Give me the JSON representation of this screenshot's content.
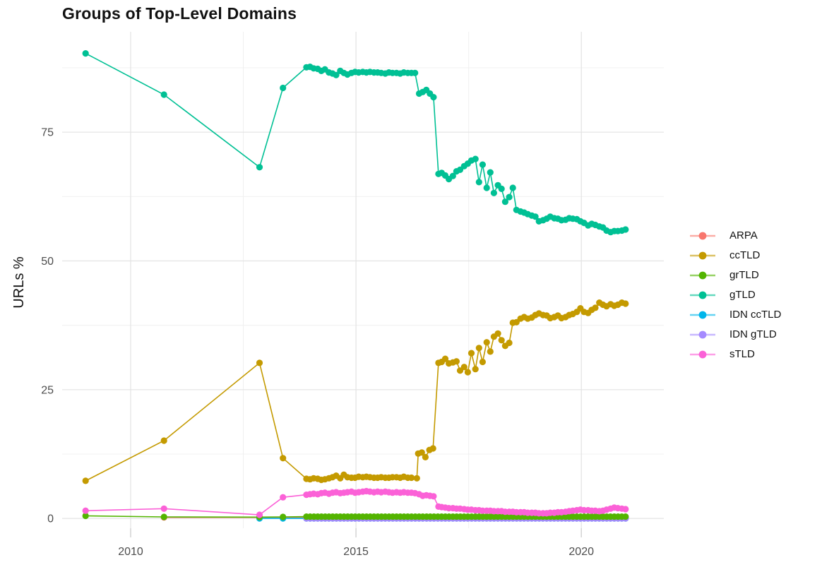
{
  "title": "Groups of Top-Level Domains",
  "y_axis": {
    "label": "URLs %",
    "ticks": [
      "0",
      "25",
      "50",
      "75"
    ]
  },
  "x_axis": {
    "ticks": [
      "2010",
      "2015",
      "2020"
    ]
  },
  "legend": {
    "items": [
      {
        "label": "ARPA",
        "color": "#F8766D"
      },
      {
        "label": "ccTLD",
        "color": "#C49A00"
      },
      {
        "label": "grTLD",
        "color": "#53B400"
      },
      {
        "label": "gTLD",
        "color": "#00C094"
      },
      {
        "label": "IDN ccTLD",
        "color": "#00B6EB"
      },
      {
        "label": "IDN gTLD",
        "color": "#A58AFF"
      },
      {
        "label": "sTLD",
        "color": "#FB61D7"
      }
    ]
  },
  "chart_data": {
    "type": "line",
    "title": "Groups of Top-Level Domains",
    "xlabel": "",
    "ylabel": "URLs %",
    "x_ticks": [
      2010,
      2015,
      2020
    ],
    "y_ticks": [
      0,
      25,
      50,
      75
    ],
    "xlim": [
      2008.48,
      2021.83
    ],
    "ylim": [
      -1.9,
      94.5
    ],
    "grid": true,
    "legend_position": "right",
    "draw_order": [
      "ARPA",
      "IDN ccTLD",
      "IDN gTLD",
      "grTLD",
      "ccTLD",
      "gTLD",
      "sTLD"
    ],
    "series": [
      {
        "name": "ARPA",
        "color": "#F8766D",
        "points": [
          [
            2010.74,
            0.2
          ],
          [
            2012.86,
            0.2
          ],
          [
            2013.38,
            0.15
          ]
        ],
        "flat": {
          "x_start": 2013.9,
          "x_end": 2020.99,
          "step": 0.0833,
          "value": 0.15
        }
      },
      {
        "name": "IDN ccTLD",
        "color": "#00B6EB",
        "points": [
          [
            2012.86,
            0.0
          ],
          [
            2013.38,
            0.0
          ]
        ],
        "flat": {
          "x_start": 2013.9,
          "x_end": 2020.99,
          "step": 0.0833,
          "value": 0.0
        }
      },
      {
        "name": "IDN gTLD",
        "color": "#A58AFF",
        "points": [],
        "flat": {
          "x_start": 2013.9,
          "x_end": 2020.99,
          "step": 0.0833,
          "value": 0.0
        }
      },
      {
        "name": "grTLD",
        "color": "#53B400",
        "points": [
          [
            2009.0,
            0.5
          ],
          [
            2010.74,
            0.3
          ],
          [
            2012.86,
            0.25
          ],
          [
            2013.38,
            0.3
          ]
        ],
        "flat": {
          "x_start": 2013.9,
          "x_end": 2020.99,
          "step": 0.0833,
          "value": 0.35
        }
      },
      {
        "name": "ccTLD",
        "color": "#C49A00",
        "points": [
          [
            2009.0,
            7.3
          ],
          [
            2010.74,
            15.1
          ],
          [
            2012.86,
            30.2
          ],
          [
            2013.38,
            11.7
          ],
          [
            2013.9,
            7.7
          ],
          [
            2013.98,
            7.6
          ],
          [
            2014.06,
            7.8
          ],
          [
            2014.15,
            7.7
          ],
          [
            2014.23,
            7.5
          ],
          [
            2014.31,
            7.6
          ],
          [
            2014.4,
            7.8
          ],
          [
            2014.48,
            8.0
          ],
          [
            2014.56,
            8.3
          ],
          [
            2014.65,
            7.8
          ],
          [
            2014.73,
            8.5
          ],
          [
            2014.81,
            8.0
          ],
          [
            2014.9,
            7.9
          ],
          [
            2014.98,
            7.9
          ],
          [
            2015.06,
            8.1
          ],
          [
            2015.15,
            8.0
          ],
          [
            2015.23,
            8.1
          ],
          [
            2015.31,
            8.0
          ],
          [
            2015.4,
            7.9
          ],
          [
            2015.48,
            7.9
          ],
          [
            2015.56,
            8.0
          ],
          [
            2015.65,
            7.9
          ],
          [
            2015.73,
            7.9
          ],
          [
            2015.81,
            8.0
          ],
          [
            2015.9,
            8.0
          ],
          [
            2015.98,
            7.9
          ],
          [
            2016.06,
            8.1
          ],
          [
            2016.15,
            7.9
          ],
          [
            2016.23,
            7.9
          ],
          [
            2016.35,
            7.8
          ],
          [
            2016.38,
            12.6
          ],
          [
            2016.46,
            12.8
          ],
          [
            2016.54,
            11.9
          ],
          [
            2016.63,
            13.3
          ],
          [
            2016.71,
            13.6
          ],
          [
            2016.83,
            30.2
          ],
          [
            2016.9,
            30.4
          ],
          [
            2016.98,
            31.0
          ],
          [
            2017.06,
            30.1
          ],
          [
            2017.15,
            30.3
          ],
          [
            2017.23,
            30.5
          ],
          [
            2017.31,
            28.7
          ],
          [
            2017.4,
            29.4
          ],
          [
            2017.48,
            28.4
          ],
          [
            2017.56,
            32.1
          ],
          [
            2017.65,
            29.0
          ],
          [
            2017.73,
            33.1
          ],
          [
            2017.81,
            30.4
          ],
          [
            2017.9,
            34.2
          ],
          [
            2017.98,
            32.4
          ],
          [
            2018.06,
            35.3
          ],
          [
            2018.15,
            35.9
          ],
          [
            2018.23,
            34.6
          ],
          [
            2018.31,
            33.5
          ],
          [
            2018.4,
            34.1
          ],
          [
            2018.48,
            38.0
          ],
          [
            2018.56,
            38.1
          ],
          [
            2018.65,
            38.8
          ],
          [
            2018.73,
            39.1
          ],
          [
            2018.81,
            38.8
          ],
          [
            2018.9,
            39.0
          ],
          [
            2018.98,
            39.5
          ],
          [
            2019.06,
            39.8
          ],
          [
            2019.15,
            39.5
          ],
          [
            2019.23,
            39.4
          ],
          [
            2019.31,
            38.9
          ],
          [
            2019.4,
            39.1
          ],
          [
            2019.48,
            39.4
          ],
          [
            2019.56,
            38.9
          ],
          [
            2019.65,
            39.1
          ],
          [
            2019.73,
            39.5
          ],
          [
            2019.81,
            39.7
          ],
          [
            2019.9,
            40.1
          ],
          [
            2019.98,
            40.8
          ],
          [
            2020.06,
            40.1
          ],
          [
            2020.15,
            39.9
          ],
          [
            2020.23,
            40.5
          ],
          [
            2020.31,
            40.9
          ],
          [
            2020.4,
            41.9
          ],
          [
            2020.48,
            41.5
          ],
          [
            2020.56,
            41.2
          ],
          [
            2020.65,
            41.6
          ],
          [
            2020.73,
            41.3
          ],
          [
            2020.81,
            41.5
          ],
          [
            2020.9,
            41.9
          ],
          [
            2020.98,
            41.7
          ]
        ]
      },
      {
        "name": "gTLD",
        "color": "#00C094",
        "points": [
          [
            2009.0,
            90.3
          ],
          [
            2010.74,
            82.3
          ],
          [
            2012.86,
            68.2
          ],
          [
            2013.38,
            83.6
          ],
          [
            2013.9,
            87.6
          ],
          [
            2013.98,
            87.7
          ],
          [
            2014.06,
            87.4
          ],
          [
            2014.15,
            87.3
          ],
          [
            2014.23,
            86.9
          ],
          [
            2014.31,
            87.2
          ],
          [
            2014.4,
            86.6
          ],
          [
            2014.48,
            86.4
          ],
          [
            2014.56,
            86.1
          ],
          [
            2014.65,
            86.9
          ],
          [
            2014.73,
            86.5
          ],
          [
            2014.81,
            86.2
          ],
          [
            2014.9,
            86.5
          ],
          [
            2014.98,
            86.7
          ],
          [
            2015.06,
            86.6
          ],
          [
            2015.15,
            86.7
          ],
          [
            2015.23,
            86.6
          ],
          [
            2015.31,
            86.7
          ],
          [
            2015.4,
            86.6
          ],
          [
            2015.48,
            86.6
          ],
          [
            2015.56,
            86.5
          ],
          [
            2015.65,
            86.4
          ],
          [
            2015.73,
            86.6
          ],
          [
            2015.81,
            86.5
          ],
          [
            2015.9,
            86.5
          ],
          [
            2015.98,
            86.4
          ],
          [
            2016.06,
            86.6
          ],
          [
            2016.15,
            86.5
          ],
          [
            2016.23,
            86.5
          ],
          [
            2016.31,
            86.5
          ],
          [
            2016.4,
            82.5
          ],
          [
            2016.48,
            82.8
          ],
          [
            2016.56,
            83.2
          ],
          [
            2016.64,
            82.5
          ],
          [
            2016.72,
            81.8
          ],
          [
            2016.83,
            66.9
          ],
          [
            2016.9,
            67.1
          ],
          [
            2016.98,
            66.6
          ],
          [
            2017.06,
            65.9
          ],
          [
            2017.15,
            66.5
          ],
          [
            2017.23,
            67.4
          ],
          [
            2017.31,
            67.7
          ],
          [
            2017.4,
            68.4
          ],
          [
            2017.48,
            68.9
          ],
          [
            2017.56,
            69.5
          ],
          [
            2017.65,
            69.8
          ],
          [
            2017.73,
            65.3
          ],
          [
            2017.81,
            68.7
          ],
          [
            2017.9,
            64.2
          ],
          [
            2017.98,
            67.2
          ],
          [
            2018.06,
            63.2
          ],
          [
            2018.15,
            64.7
          ],
          [
            2018.23,
            64.0
          ],
          [
            2018.31,
            61.5
          ],
          [
            2018.4,
            62.4
          ],
          [
            2018.48,
            64.2
          ],
          [
            2018.56,
            59.9
          ],
          [
            2018.65,
            59.6
          ],
          [
            2018.73,
            59.4
          ],
          [
            2018.81,
            59.1
          ],
          [
            2018.9,
            58.8
          ],
          [
            2018.98,
            58.6
          ],
          [
            2019.06,
            57.7
          ],
          [
            2019.15,
            57.9
          ],
          [
            2019.23,
            58.2
          ],
          [
            2019.31,
            58.6
          ],
          [
            2019.4,
            58.3
          ],
          [
            2019.48,
            58.2
          ],
          [
            2019.56,
            57.9
          ],
          [
            2019.65,
            58.0
          ],
          [
            2019.73,
            58.3
          ],
          [
            2019.81,
            58.2
          ],
          [
            2019.9,
            58.1
          ],
          [
            2019.98,
            57.7
          ],
          [
            2020.06,
            57.4
          ],
          [
            2020.15,
            56.9
          ],
          [
            2020.23,
            57.2
          ],
          [
            2020.31,
            57.0
          ],
          [
            2020.4,
            56.7
          ],
          [
            2020.48,
            56.5
          ],
          [
            2020.56,
            55.9
          ],
          [
            2020.65,
            55.6
          ],
          [
            2020.73,
            55.8
          ],
          [
            2020.81,
            55.8
          ],
          [
            2020.9,
            55.9
          ],
          [
            2020.98,
            56.1
          ]
        ]
      },
      {
        "name": "sTLD",
        "color": "#FB61D7",
        "points": [
          [
            2009.0,
            1.5
          ],
          [
            2010.74,
            1.9
          ],
          [
            2012.86,
            0.7
          ],
          [
            2013.38,
            4.1
          ],
          [
            2013.9,
            4.6
          ],
          [
            2013.98,
            4.7
          ],
          [
            2014.06,
            4.8
          ],
          [
            2014.15,
            4.7
          ],
          [
            2014.23,
            4.9
          ],
          [
            2014.31,
            5.0
          ],
          [
            2014.4,
            4.8
          ],
          [
            2014.48,
            5.0
          ],
          [
            2014.56,
            5.1
          ],
          [
            2014.65,
            4.9
          ],
          [
            2014.73,
            5.0
          ],
          [
            2014.81,
            5.1
          ],
          [
            2014.9,
            5.2
          ],
          [
            2014.98,
            5.0
          ],
          [
            2015.06,
            5.1
          ],
          [
            2015.15,
            5.2
          ],
          [
            2015.23,
            5.3
          ],
          [
            2015.31,
            5.2
          ],
          [
            2015.4,
            5.1
          ],
          [
            2015.48,
            5.2
          ],
          [
            2015.56,
            5.1
          ],
          [
            2015.65,
            5.2
          ],
          [
            2015.73,
            5.1
          ],
          [
            2015.81,
            5.0
          ],
          [
            2015.9,
            5.1
          ],
          [
            2015.98,
            5.0
          ],
          [
            2016.06,
            5.1
          ],
          [
            2016.15,
            5.0
          ],
          [
            2016.23,
            5.0
          ],
          [
            2016.31,
            4.9
          ],
          [
            2016.4,
            4.7
          ],
          [
            2016.48,
            4.4
          ],
          [
            2016.56,
            4.5
          ],
          [
            2016.64,
            4.4
          ],
          [
            2016.72,
            4.3
          ],
          [
            2016.83,
            2.3
          ],
          [
            2016.9,
            2.2
          ],
          [
            2016.98,
            2.1
          ],
          [
            2017.06,
            2.0
          ],
          [
            2017.15,
            2.0
          ],
          [
            2017.23,
            1.9
          ],
          [
            2017.31,
            1.9
          ],
          [
            2017.4,
            1.8
          ],
          [
            2017.48,
            1.7
          ],
          [
            2017.56,
            1.7
          ],
          [
            2017.65,
            1.6
          ],
          [
            2017.73,
            1.6
          ],
          [
            2017.81,
            1.5
          ],
          [
            2017.9,
            1.5
          ],
          [
            2017.98,
            1.5
          ],
          [
            2018.06,
            1.4
          ],
          [
            2018.15,
            1.4
          ],
          [
            2018.23,
            1.4
          ],
          [
            2018.31,
            1.3
          ],
          [
            2018.4,
            1.3
          ],
          [
            2018.48,
            1.3
          ],
          [
            2018.56,
            1.2
          ],
          [
            2018.65,
            1.2
          ],
          [
            2018.73,
            1.2
          ],
          [
            2018.81,
            1.1
          ],
          [
            2018.9,
            1.1
          ],
          [
            2018.98,
            1.1
          ],
          [
            2019.06,
            1.0
          ],
          [
            2019.15,
            1.0
          ],
          [
            2019.23,
            1.0
          ],
          [
            2019.31,
            1.1
          ],
          [
            2019.4,
            1.1
          ],
          [
            2019.48,
            1.2
          ],
          [
            2019.56,
            1.2
          ],
          [
            2019.65,
            1.3
          ],
          [
            2019.73,
            1.4
          ],
          [
            2019.81,
            1.5
          ],
          [
            2019.9,
            1.6
          ],
          [
            2019.98,
            1.7
          ],
          [
            2020.06,
            1.6
          ],
          [
            2020.15,
            1.6
          ],
          [
            2020.23,
            1.5
          ],
          [
            2020.31,
            1.5
          ],
          [
            2020.4,
            1.4
          ],
          [
            2020.48,
            1.5
          ],
          [
            2020.56,
            1.7
          ],
          [
            2020.65,
            1.9
          ],
          [
            2020.73,
            2.1
          ],
          [
            2020.81,
            2.0
          ],
          [
            2020.9,
            1.9
          ],
          [
            2020.98,
            1.8
          ]
        ]
      }
    ]
  }
}
